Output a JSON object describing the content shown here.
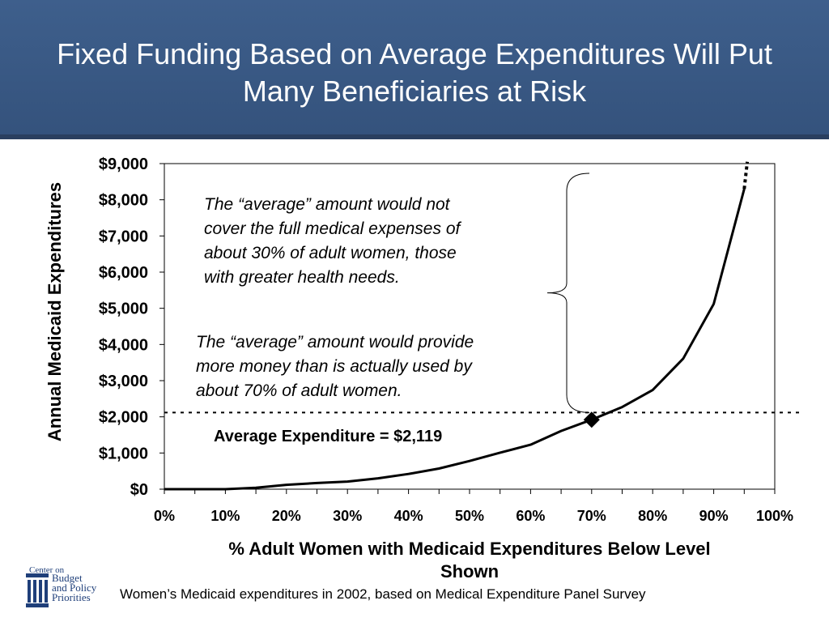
{
  "title_line1": "Fixed Funding Based on Average Expenditures Will Put",
  "title_line2": "Many Beneficiaries at Risk",
  "chart_data": {
    "type": "line",
    "ylabel": "Annual Medicaid Expenditures",
    "xlabel": "% Adult Women with Medicaid Expenditures Below Level Shown",
    "y_ticks": [
      "$0",
      "$1,000",
      "$2,000",
      "$3,000",
      "$4,000",
      "$5,000",
      "$6,000",
      "$7,000",
      "$8,000",
      "$9,000"
    ],
    "x_ticks": [
      "0%",
      "10%",
      "20%",
      "30%",
      "40%",
      "50%",
      "60%",
      "70%",
      "80%",
      "90%",
      "100%"
    ],
    "xlim": [
      0,
      100
    ],
    "ylim": [
      0,
      9000
    ],
    "series": [
      {
        "x": [
          0,
          5,
          10,
          15,
          20,
          25,
          30,
          35,
          40,
          45,
          50,
          55,
          60,
          65,
          70,
          75,
          80,
          85,
          90,
          95
        ],
        "y": [
          0,
          0,
          0,
          40,
          120,
          170,
          210,
          300,
          420,
          570,
          780,
          1010,
          1230,
          1610,
          1920,
          2270,
          2740,
          3610,
          5120,
          8300
        ]
      }
    ],
    "extension_dotted": {
      "x": [
        95,
        95.5
      ],
      "y": [
        8300,
        9050
      ]
    },
    "average": {
      "label": "Average Expenditure = $2,119",
      "value": 2119,
      "marker_x": 70,
      "marker_y": 1920
    },
    "annotations": [
      "The “average” amount would not cover the full medical expenses of about 30% of adult women, those with greater health needs.",
      "The “average” amount would provide more money than is actually used by about 70% of adult women."
    ],
    "grid": false
  },
  "annotation1_lines": [
    "The “average” amount would not",
    "cover the full medical expenses of",
    "about 30% of adult women, those",
    "with greater health needs."
  ],
  "annotation2_lines": [
    "The “average” amount would provide",
    "more money than is actually used by",
    "about 70% of adult women."
  ],
  "xlabel_line1": "% Adult Women with Medicaid Expenditures Below Level",
  "xlabel_line2": "Shown",
  "source": "Women’s Medicaid expenditures in 2002, based on Medical Expenditure Panel Survey",
  "logo": {
    "line0": "Center on",
    "line1": "Budget",
    "line2": "and Policy",
    "line3": "Priorities",
    "color": "#1f3f7a"
  },
  "colors": {
    "header": "#3a5a86",
    "line": "#000000"
  }
}
